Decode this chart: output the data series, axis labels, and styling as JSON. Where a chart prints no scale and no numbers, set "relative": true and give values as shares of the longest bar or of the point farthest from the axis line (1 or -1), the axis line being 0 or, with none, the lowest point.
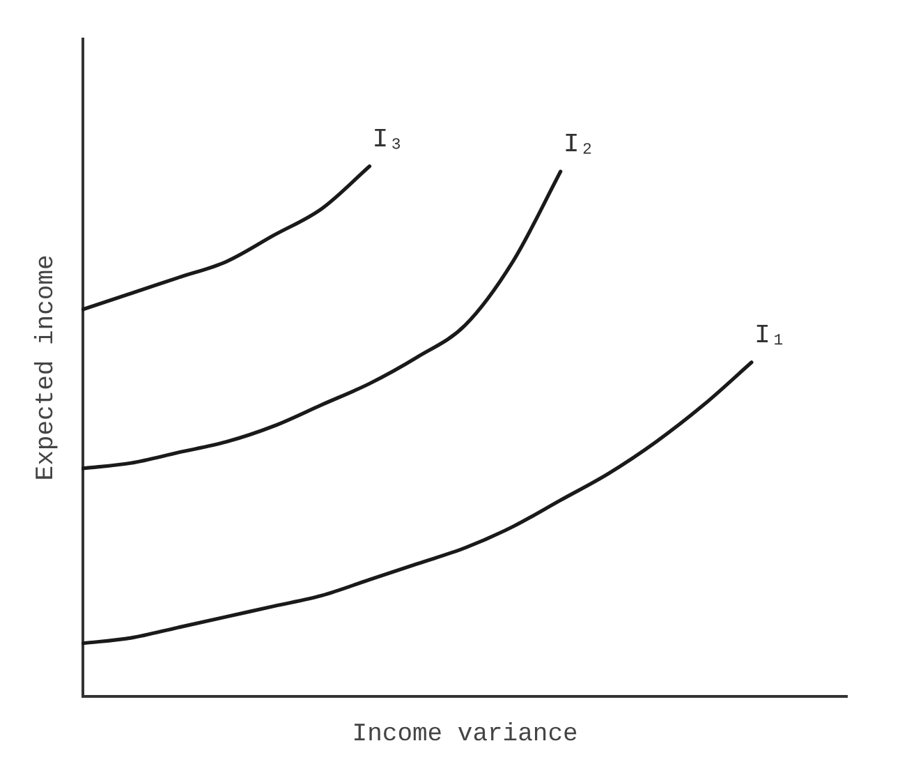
{
  "chart_data": {
    "type": "line",
    "relative": true,
    "xlabel": "Income variance",
    "ylabel": "Expected income",
    "categories": [
      null,
      null,
      null,
      null,
      null,
      null,
      null,
      null,
      null,
      null,
      null,
      null,
      null,
      null,
      null,
      null,
      null
    ],
    "legend": false,
    "grid": false,
    "marker": "none",
    "line_style": "solid",
    "series": [
      {
        "name": "I₃",
        "color": "#1a1a1a",
        "values": [
          0.73,
          0.76,
          0.79,
          0.82,
          0.87,
          0.92,
          1,
          null,
          null,
          null,
          null,
          null,
          null,
          null,
          null,
          null,
          null
        ]
      },
      {
        "name": "I₂",
        "color": "#1a1a1a",
        "values": [
          0.43,
          0.44,
          0.46,
          0.48,
          0.51,
          0.55,
          0.59,
          0.64,
          0.7,
          0.82,
          0.99,
          null,
          null,
          null,
          null,
          null,
          null
        ]
      },
      {
        "name": "I₁",
        "color": "#1a1a1a",
        "values": [
          0.1,
          0.11,
          0.13,
          0.15,
          0.17,
          0.19,
          0.22,
          0.25,
          0.28,
          0.32,
          0.37,
          0.42,
          0.48,
          0.55,
          0.63,
          null,
          null
        ]
      }
    ]
  }
}
